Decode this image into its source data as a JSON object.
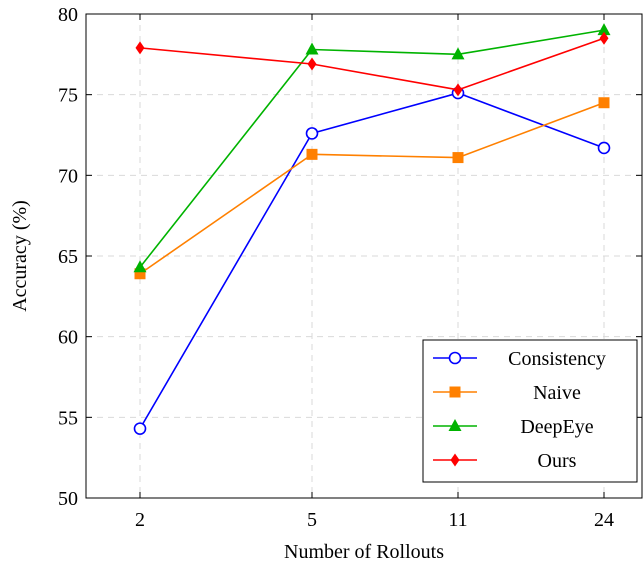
{
  "chart_data": {
    "type": "line",
    "xlabel": "Number of Rollouts",
    "ylabel": "Accuracy (%)",
    "categories": [
      "2",
      "5",
      "11",
      "24"
    ],
    "ylim": [
      50,
      80
    ],
    "yticks": [
      "50",
      "55",
      "60",
      "65",
      "70",
      "75",
      "80"
    ],
    "grid": true,
    "legend_position": "bottom-right",
    "series": [
      {
        "name": "Consistency",
        "color": "#0000ff",
        "marker": "circle-open",
        "values": [
          54.3,
          72.6,
          75.1,
          71.7
        ]
      },
      {
        "name": "Naive",
        "color": "#ff8000",
        "marker": "square",
        "values": [
          63.9,
          71.3,
          71.1,
          74.5
        ]
      },
      {
        "name": "DeepEye",
        "color": "#00b300",
        "marker": "triangle",
        "values": [
          64.3,
          77.8,
          77.5,
          79.0
        ]
      },
      {
        "name": "Ours",
        "color": "#ff0000",
        "marker": "diamond",
        "values": [
          77.9,
          76.9,
          75.3,
          78.5
        ]
      }
    ]
  }
}
